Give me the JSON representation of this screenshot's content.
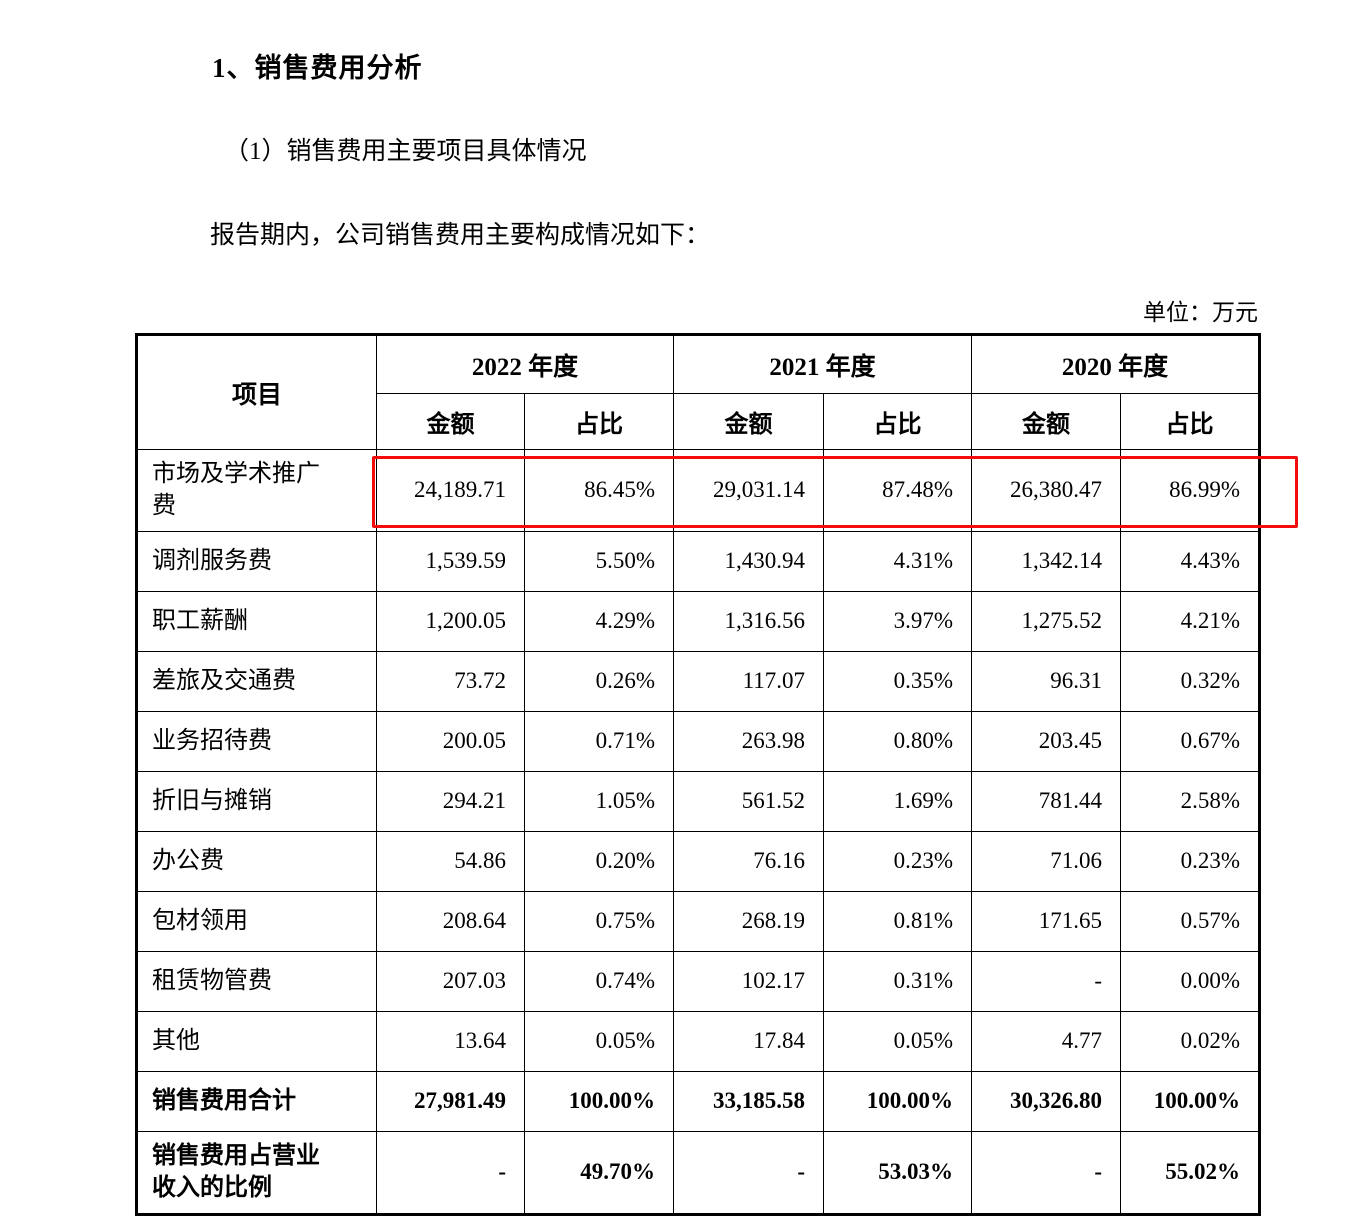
{
  "page": {
    "title": "1、销售费用分析",
    "subtitle": "（1）销售费用主要项目具体情况",
    "intro": "报告期内，公司销售费用主要构成情况如下：",
    "unit_label": "单位：万元"
  },
  "table": {
    "header": {
      "item_label": "项目",
      "year_groups": [
        "2022 年度",
        "2021 年度",
        "2020 年度"
      ],
      "sub_headers": [
        "金额",
        "占比"
      ]
    },
    "highlight_color": "#f40b0b",
    "rows": [
      {
        "label": "市场及学术推广费",
        "values": [
          "24,189.71",
          "86.45%",
          "29,031.14",
          "87.48%",
          "26,380.47",
          "86.99%"
        ],
        "highlighted": true,
        "bold": false
      },
      {
        "label": "调剂服务费",
        "values": [
          "1,539.59",
          "5.50%",
          "1,430.94",
          "4.31%",
          "1,342.14",
          "4.43%"
        ],
        "highlighted": false,
        "bold": false
      },
      {
        "label": "职工薪酬",
        "values": [
          "1,200.05",
          "4.29%",
          "1,316.56",
          "3.97%",
          "1,275.52",
          "4.21%"
        ],
        "highlighted": false,
        "bold": false
      },
      {
        "label": "差旅及交通费",
        "values": [
          "73.72",
          "0.26%",
          "117.07",
          "0.35%",
          "96.31",
          "0.32%"
        ],
        "highlighted": false,
        "bold": false
      },
      {
        "label": "业务招待费",
        "values": [
          "200.05",
          "0.71%",
          "263.98",
          "0.80%",
          "203.45",
          "0.67%"
        ],
        "highlighted": false,
        "bold": false
      },
      {
        "label": "折旧与摊销",
        "values": [
          "294.21",
          "1.05%",
          "561.52",
          "1.69%",
          "781.44",
          "2.58%"
        ],
        "highlighted": false,
        "bold": false
      },
      {
        "label": "办公费",
        "values": [
          "54.86",
          "0.20%",
          "76.16",
          "0.23%",
          "71.06",
          "0.23%"
        ],
        "highlighted": false,
        "bold": false
      },
      {
        "label": "包材领用",
        "values": [
          "208.64",
          "0.75%",
          "268.19",
          "0.81%",
          "171.65",
          "0.57%"
        ],
        "highlighted": false,
        "bold": false
      },
      {
        "label": "租赁物管费",
        "values": [
          "207.03",
          "0.74%",
          "102.17",
          "0.31%",
          "-",
          "0.00%"
        ],
        "highlighted": false,
        "bold": false
      },
      {
        "label": "其他",
        "values": [
          "13.64",
          "0.05%",
          "17.84",
          "0.05%",
          "4.77",
          "0.02%"
        ],
        "highlighted": false,
        "bold": false
      },
      {
        "label": "销售费用合计",
        "values": [
          "27,981.49",
          "100.00%",
          "33,185.58",
          "100.00%",
          "30,326.80",
          "100.00%"
        ],
        "highlighted": false,
        "bold": true
      },
      {
        "label": "销售费用占营业收入的比例",
        "values": [
          "-",
          "49.70%",
          "-",
          "53.03%",
          "-",
          "55.02%"
        ],
        "highlighted": false,
        "bold": true
      }
    ]
  }
}
